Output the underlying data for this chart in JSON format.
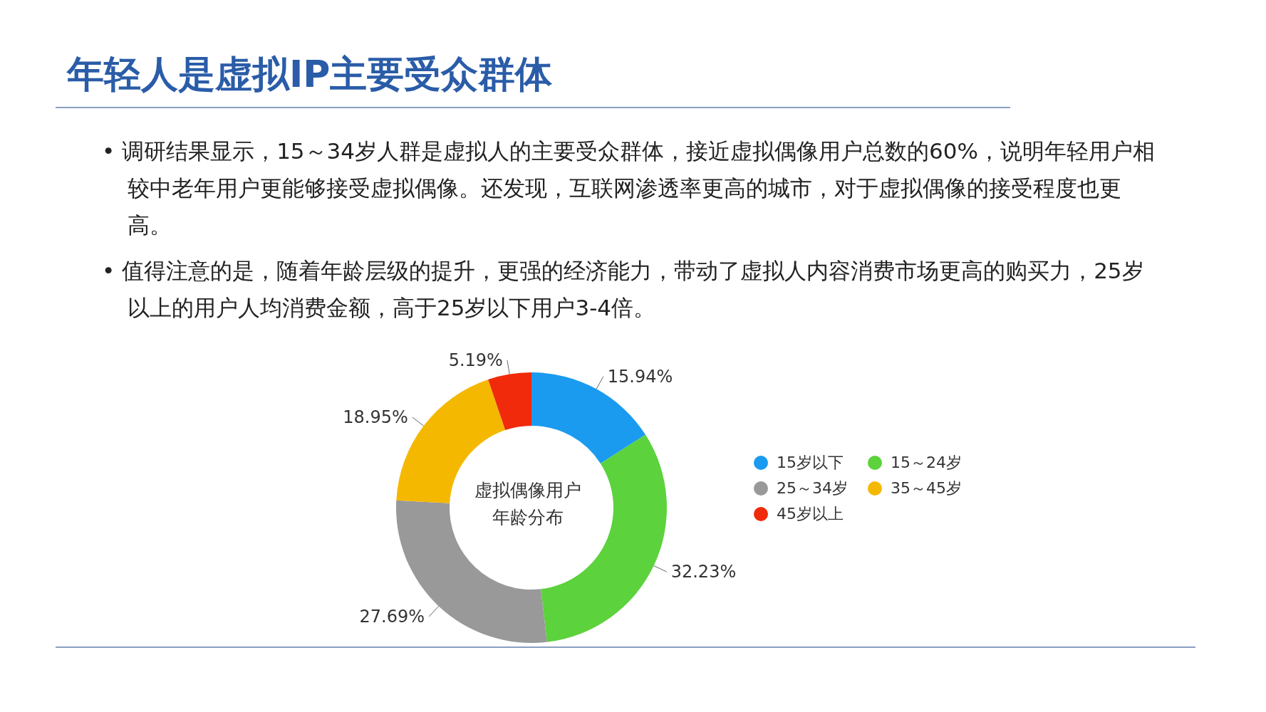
{
  "chart_data": {
    "type": "donut",
    "title": "年轻人是虚拟IP主要受众群体",
    "subtitle": "虚拟偶像用户年龄分布",
    "annotations": [
      "• 调研结果显示，15～34岁人群是虚拟人的主要受众群体，接近虚拟偶像用户总数的60%，说明年轻用户相较中老年用户更能够接受虚拟偶像。还发现，互联网渗透率更高的城市，对于虚拟偶像的接受程度也更高。",
      "• 值得注意的是，随着年龄层级的提升，更强的经济能力，带动了虚拟人内容消费市场更高的购买力，25岁以上的用户人均消费金额，高于25岁以下用户3-4倍。"
    ],
    "categories": [
      "15岁以下",
      "15～24岁",
      "25～34岁",
      "35～45岁",
      "45岁以上"
    ],
    "values": [
      15.94,
      32.23,
      27.69,
      18.95,
      5.19
    ],
    "colors": [
      "#1a9bf0",
      "#5cd23c",
      "#999999",
      "#f5b800",
      "#f02a0a"
    ],
    "value_labels": [
      "15.94%",
      "32.23%",
      "27.69%",
      "18.95%",
      "5.19%"
    ],
    "legend": "right"
  }
}
